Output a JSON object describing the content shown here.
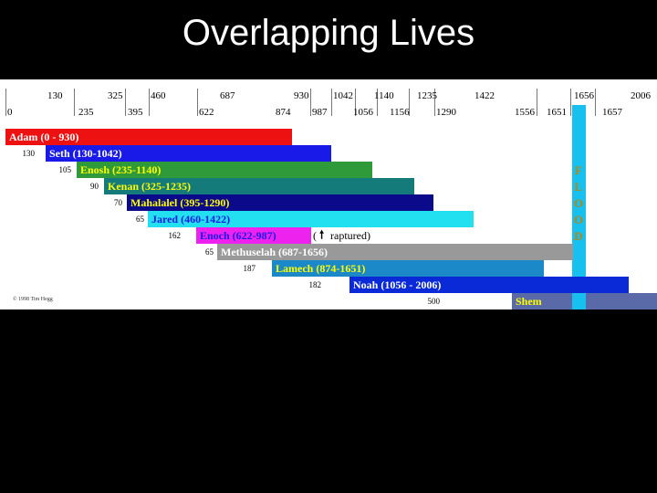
{
  "title": "Overlapping Lives",
  "top_ticks": [
    "130",
    "325",
    "460",
    "687",
    "930",
    "1042",
    "1140",
    "1235",
    "1422",
    "1656",
    "2006"
  ],
  "bottom_ticks": [
    "0",
    "235",
    "395",
    "622",
    "874",
    "987",
    "1056",
    "1156",
    "1290",
    "1556",
    "1651",
    "1657"
  ],
  "bars": [
    {
      "label": "Adam  (0 - 930)",
      "offset": "",
      "color": "#ee1111",
      "text": "#ffffff"
    },
    {
      "label": "Seth (130-1042)",
      "offset": "130",
      "color": "#1a1ae8",
      "text": "#ffffff"
    },
    {
      "label": "Enosh (235-1140)",
      "offset": "105",
      "color": "#2e9a3a",
      "text": "#ffff00"
    },
    {
      "label": "Kenan (325-1235)",
      "offset": "90",
      "color": "#147a7a",
      "text": "#ffff00"
    },
    {
      "label": "Mahalalel (395-1290)",
      "offset": "70",
      "color": "#0a0a8a",
      "text": "#ffff00"
    },
    {
      "label": "Jared (460-1422)",
      "offset": "65",
      "color": "#22e0f0",
      "text": "#1a1ae8"
    },
    {
      "label": "Enoch (622-987)",
      "offset": "162",
      "color": "#ee22ee",
      "text": "#1a1ae8"
    },
    {
      "label": "Methuselah (687-1656)",
      "offset": "65",
      "color": "#999999",
      "text": "#ffffff"
    },
    {
      "label": "Lamech (874-1651)",
      "offset": "187",
      "color": "#1b88c8",
      "text": "#ffff00"
    },
    {
      "label": "Noah (1056 - 2006)",
      "offset": "182",
      "color": "#0a2ad8",
      "text": "#ffffff"
    },
    {
      "label": "Shem",
      "offset": "500",
      "color": "#5a6aa8",
      "text": "#ffff00"
    }
  ],
  "raptured": {
    "open": "(",
    "arrow": "🠕",
    "text": "raptured)"
  },
  "flood_letters": [
    "F",
    "L",
    "O",
    "O",
    "D"
  ],
  "copyright": "© 1998 Tim Hegg"
}
